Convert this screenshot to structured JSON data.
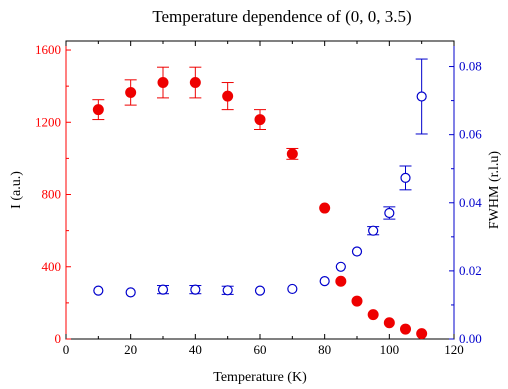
{
  "chart_data": {
    "type": "scatter",
    "title": "Temperature dependence of (0, 0, 3.5)",
    "xlabel": "Temperature (K)",
    "ylabel_left": "I (a.u.)",
    "ylabel_right": "FWHM (r.l.u)",
    "xlim": [
      0,
      120
    ],
    "ylim_left": [
      0,
      1650
    ],
    "ylim_right": [
      0,
      0.0875
    ],
    "x_ticks": [
      "0",
      "20",
      "40",
      "60",
      "80",
      "100",
      "120"
    ],
    "y_ticks_left": [
      "0",
      "400",
      "800",
      "1200",
      "1600"
    ],
    "y_ticks_right": [
      "0.00",
      "0.02",
      "0.04",
      "0.06",
      "0.08"
    ],
    "colors": {
      "left_axis": "#ff0000",
      "right_axis": "#0000cc",
      "main_axis": "#000000"
    },
    "series": [
      {
        "name": "I (a.u.)",
        "axis": "left",
        "marker": "filled-circle",
        "color": "#ee0000",
        "x": [
          10,
          20,
          30,
          40,
          50,
          60,
          70,
          80,
          85,
          90,
          95,
          100,
          105,
          110
        ],
        "y": [
          1270,
          1365,
          1420,
          1420,
          1345,
          1215,
          1025,
          725,
          320,
          210,
          135,
          90,
          55,
          30
        ],
        "yerr": [
          55,
          70,
          85,
          85,
          75,
          55,
          30,
          15,
          10,
          8,
          8,
          5,
          5,
          5
        ]
      },
      {
        "name": "FWHM (r.l.u)",
        "axis": "right",
        "marker": "open-circle",
        "color": "#0000cc",
        "x": [
          10,
          20,
          30,
          40,
          50,
          60,
          70,
          80,
          85,
          90,
          95,
          100,
          105,
          110
        ],
        "y": [
          0.0142,
          0.0137,
          0.0145,
          0.0145,
          0.0143,
          0.0142,
          0.0147,
          0.017,
          0.0212,
          0.0257,
          0.0318,
          0.037,
          0.0473,
          0.0712
        ],
        "yerr": [
          0.001,
          0.001,
          0.0012,
          0.0012,
          0.0012,
          0.001,
          0.001,
          0.0008,
          0.0008,
          0.001,
          0.0012,
          0.0018,
          0.0035,
          0.011
        ]
      }
    ]
  }
}
